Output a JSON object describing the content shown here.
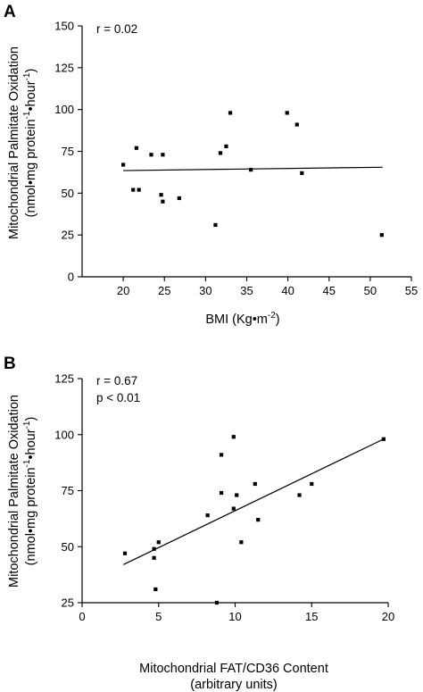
{
  "chart_data": [
    {
      "panel_label": "A",
      "type": "scatter",
      "xlabel_main": "BMI (Kg",
      "xlabel_bullet": "•",
      "xlabel_unit": "m",
      "xlabel_sup": "-2",
      "xlabel_close": ")",
      "ylabel_line1": "Mitochondrial Palmitate Oxidation",
      "ylabel_line2_a": "(nmol",
      "ylabel_bullet": "•",
      "ylabel_line2_b": "mg protein",
      "ylabel_sup1": "-1",
      "ylabel_line2_c": "hour",
      "ylabel_sup2": "-1",
      "ylabel_close": ")",
      "annotations": [
        "r = 0.02"
      ],
      "xlim": [
        15,
        55
      ],
      "ylim": [
        0,
        150
      ],
      "xticks": [
        20,
        25,
        30,
        35,
        40,
        45,
        50,
        55
      ],
      "yticks": [
        0,
        25,
        50,
        75,
        100,
        125,
        150
      ],
      "points": [
        {
          "x": 20.0,
          "y": 67
        },
        {
          "x": 21.2,
          "y": 52
        },
        {
          "x": 21.6,
          "y": 77
        },
        {
          "x": 21.9,
          "y": 52
        },
        {
          "x": 23.4,
          "y": 73
        },
        {
          "x": 24.6,
          "y": 49
        },
        {
          "x": 24.8,
          "y": 45
        },
        {
          "x": 24.8,
          "y": 73
        },
        {
          "x": 26.8,
          "y": 47
        },
        {
          "x": 31.2,
          "y": 31
        },
        {
          "x": 31.8,
          "y": 74
        },
        {
          "x": 32.5,
          "y": 78
        },
        {
          "x": 33.0,
          "y": 98
        },
        {
          "x": 35.5,
          "y": 64
        },
        {
          "x": 39.9,
          "y": 98
        },
        {
          "x": 41.1,
          "y": 91
        },
        {
          "x": 41.7,
          "y": 62
        },
        {
          "x": 51.4,
          "y": 25
        }
      ],
      "fit_line": {
        "x": [
          20,
          51.5
        ],
        "y": [
          63.5,
          65.5
        ]
      }
    },
    {
      "panel_label": "B",
      "type": "scatter",
      "xlabel_line1": "Mitochondrial FAT/CD36 Content",
      "xlabel_line2": "(arbitrary units)",
      "ylabel_line1": "Mitochondrial Palmitate Oxidation",
      "ylabel_line2_a": "(nmol",
      "ylabel_bullet": "•",
      "ylabel_line2_b": "mg protein",
      "ylabel_sup1": "-1",
      "ylabel_line2_c": "hour",
      "ylabel_sup2": "-1",
      "ylabel_close": ")",
      "annotations": [
        "r = 0.67",
        "p < 0.01"
      ],
      "xlim": [
        0,
        20
      ],
      "ylim": [
        25,
        125
      ],
      "xticks": [
        0,
        5,
        10,
        15,
        20
      ],
      "yticks": [
        25,
        50,
        75,
        100,
        125
      ],
      "points": [
        {
          "x": 2.8,
          "y": 47
        },
        {
          "x": 4.7,
          "y": 45
        },
        {
          "x": 4.7,
          "y": 49
        },
        {
          "x": 4.8,
          "y": 31
        },
        {
          "x": 5.0,
          "y": 52
        },
        {
          "x": 8.2,
          "y": 64
        },
        {
          "x": 8.8,
          "y": 25
        },
        {
          "x": 9.1,
          "y": 74
        },
        {
          "x": 9.1,
          "y": 91
        },
        {
          "x": 9.9,
          "y": 67
        },
        {
          "x": 9.9,
          "y": 99
        },
        {
          "x": 10.1,
          "y": 73
        },
        {
          "x": 10.4,
          "y": 52
        },
        {
          "x": 11.3,
          "y": 78
        },
        {
          "x": 11.5,
          "y": 62
        },
        {
          "x": 14.2,
          "y": 73
        },
        {
          "x": 15.0,
          "y": 78
        },
        {
          "x": 19.7,
          "y": 98
        }
      ],
      "fit_line": {
        "x": [
          2.7,
          19.7
        ],
        "y": [
          42,
          98
        ]
      }
    }
  ]
}
